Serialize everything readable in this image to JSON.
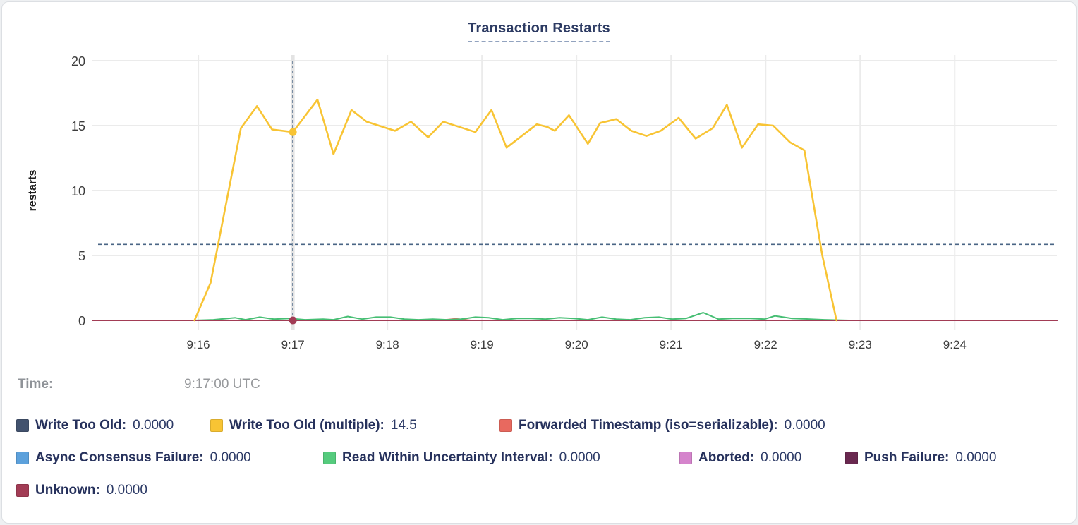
{
  "title": "Transaction Restarts",
  "time_row": {
    "label": "Time:",
    "value": "9:17:00 UTC"
  },
  "legend": {
    "rows": [
      [
        {
          "label": "Write Too Old:",
          "value": "0.0000",
          "color": "#42526E"
        },
        {
          "label": "Write Too Old (multiple):",
          "value": "14.5",
          "color": "#F8C434"
        },
        {
          "label": "Forwarded Timestamp (iso=serializable):",
          "value": "0.0000",
          "color": "#E8695F"
        }
      ],
      [
        {
          "label": "Async Consensus Failure:",
          "value": "0.0000",
          "color": "#5CA1DC"
        },
        {
          "label": "Read Within Uncertainty Interval:",
          "value": "0.0000",
          "color": "#55CB7D"
        },
        {
          "label": "Aborted:",
          "value": "0.0000",
          "color": "#D584CC"
        },
        {
          "label": "Push Failure:",
          "value": "0.0000",
          "color": "#69284F"
        }
      ],
      [
        {
          "label": "Unknown:",
          "value": "0.0000",
          "color": "#A23C55"
        }
      ]
    ]
  },
  "chart_data": {
    "type": "line",
    "title": "Transaction Restarts",
    "ylabel": "restarts",
    "ylim": [
      0,
      20
    ],
    "yticks": [
      0,
      5,
      10,
      15,
      20
    ],
    "xlim": [
      14.88,
      25.08
    ],
    "xticks": [
      {
        "t": 16,
        "label": "9:16"
      },
      {
        "t": 17,
        "label": "9:17"
      },
      {
        "t": 18,
        "label": "9:18"
      },
      {
        "t": 19,
        "label": "9:19"
      },
      {
        "t": 20,
        "label": "9:20"
      },
      {
        "t": 21,
        "label": "9:21"
      },
      {
        "t": 22,
        "label": "9:22"
      },
      {
        "t": 23,
        "label": "9:23"
      },
      {
        "t": 24,
        "label": "9:24"
      }
    ],
    "grid": true,
    "legend_position": "bottom",
    "avg_line": {
      "value": 5.85,
      "color": "#4A6585"
    },
    "hover": {
      "t": 17,
      "time_label": "9:17:00 UTC",
      "band_color": "#e3e3e3",
      "line_color": "#4A6585"
    },
    "colors": {
      "grid": "#ebebeb",
      "axis_text": "#3c3c3c",
      "ylabel_text": "#1d1d1d"
    },
    "draw_order": [
      0,
      3,
      5,
      6,
      2,
      4,
      7,
      1
    ],
    "series": [
      {
        "name": "Write Too Old",
        "color": "#42526E",
        "hover_value": "0.0000",
        "points": [
          [
            14.88,
            0
          ],
          [
            25.08,
            0
          ]
        ]
      },
      {
        "name": "Write Too Old (multiple)",
        "color": "#F8C434",
        "hover_value": "14.5",
        "points": [
          [
            15.96,
            0
          ],
          [
            16.13,
            2.9
          ],
          [
            16.45,
            14.8
          ],
          [
            16.62,
            16.5
          ],
          [
            16.78,
            14.7
          ],
          [
            17.0,
            14.5
          ],
          [
            17.26,
            17.0
          ],
          [
            17.43,
            12.8
          ],
          [
            17.62,
            16.2
          ],
          [
            17.78,
            15.3
          ],
          [
            18.08,
            14.6
          ],
          [
            18.25,
            15.3
          ],
          [
            18.43,
            14.1
          ],
          [
            18.59,
            15.3
          ],
          [
            18.93,
            14.5
          ],
          [
            19.1,
            16.2
          ],
          [
            19.26,
            13.3
          ],
          [
            19.58,
            15.1
          ],
          [
            19.69,
            14.9
          ],
          [
            19.77,
            14.6
          ],
          [
            19.92,
            15.8
          ],
          [
            20.12,
            13.6
          ],
          [
            20.25,
            15.2
          ],
          [
            20.42,
            15.5
          ],
          [
            20.58,
            14.6
          ],
          [
            20.74,
            14.2
          ],
          [
            20.89,
            14.6
          ],
          [
            21.08,
            15.6
          ],
          [
            21.26,
            14.0
          ],
          [
            21.44,
            14.8
          ],
          [
            21.59,
            16.6
          ],
          [
            21.75,
            13.3
          ],
          [
            21.92,
            15.1
          ],
          [
            22.08,
            15.0
          ],
          [
            22.26,
            13.7
          ],
          [
            22.41,
            13.1
          ],
          [
            22.6,
            5.0
          ],
          [
            22.75,
            0
          ]
        ]
      },
      {
        "name": "Forwarded Timestamp (iso=serializable)",
        "color": "#E8695F",
        "hover_value": "0.0000",
        "points": [
          [
            18.55,
            0
          ],
          [
            18.72,
            0.12
          ],
          [
            18.88,
            0
          ]
        ]
      },
      {
        "name": "Async Consensus Failure",
        "color": "#5CA1DC",
        "hover_value": "0.0000",
        "points": [
          [
            14.88,
            0
          ],
          [
            25.08,
            0
          ]
        ]
      },
      {
        "name": "Read Within Uncertainty Interval",
        "color": "#46BE73",
        "hover_value": "0.0000",
        "points": [
          [
            15.96,
            0
          ],
          [
            16.16,
            0.05
          ],
          [
            16.39,
            0.2
          ],
          [
            16.5,
            0.05
          ],
          [
            16.65,
            0.25
          ],
          [
            16.8,
            0.1
          ],
          [
            16.96,
            0.15
          ],
          [
            17.13,
            0.05
          ],
          [
            17.32,
            0.1
          ],
          [
            17.43,
            0.05
          ],
          [
            17.58,
            0.3
          ],
          [
            17.73,
            0.1
          ],
          [
            17.88,
            0.25
          ],
          [
            18.03,
            0.25
          ],
          [
            18.18,
            0.1
          ],
          [
            18.33,
            0.05
          ],
          [
            18.48,
            0.1
          ],
          [
            18.63,
            0.05
          ],
          [
            18.78,
            0.1
          ],
          [
            18.93,
            0.25
          ],
          [
            19.07,
            0.2
          ],
          [
            19.22,
            0.05
          ],
          [
            19.37,
            0.15
          ],
          [
            19.52,
            0.15
          ],
          [
            19.67,
            0.1
          ],
          [
            19.82,
            0.2
          ],
          [
            19.97,
            0.15
          ],
          [
            20.12,
            0.05
          ],
          [
            20.27,
            0.25
          ],
          [
            20.42,
            0.1
          ],
          [
            20.57,
            0.05
          ],
          [
            20.72,
            0.2
          ],
          [
            20.87,
            0.25
          ],
          [
            21.01,
            0.1
          ],
          [
            21.16,
            0.15
          ],
          [
            21.34,
            0.6
          ],
          [
            21.5,
            0.1
          ],
          [
            21.65,
            0.15
          ],
          [
            21.84,
            0.15
          ],
          [
            21.99,
            0.1
          ],
          [
            22.1,
            0.35
          ],
          [
            22.28,
            0.15
          ],
          [
            22.47,
            0.1
          ],
          [
            22.62,
            0.05
          ],
          [
            22.88,
            0
          ]
        ]
      },
      {
        "name": "Aborted",
        "color": "#D584CC",
        "hover_value": "0.0000",
        "points": [
          [
            14.88,
            0
          ],
          [
            25.08,
            0
          ]
        ]
      },
      {
        "name": "Push Failure",
        "color": "#69284F",
        "hover_value": "0.0000",
        "points": [
          [
            14.88,
            0
          ],
          [
            25.08,
            0
          ]
        ]
      },
      {
        "name": "Unknown",
        "color": "#A23C55",
        "hover_value": "0.0000",
        "points": [
          [
            14.88,
            0
          ],
          [
            25.08,
            0
          ]
        ]
      }
    ],
    "markers": [
      {
        "t": 17,
        "value": 14.5,
        "color": "#F8C434"
      },
      {
        "t": 17,
        "value": 0,
        "color": "#A23C55"
      }
    ]
  }
}
